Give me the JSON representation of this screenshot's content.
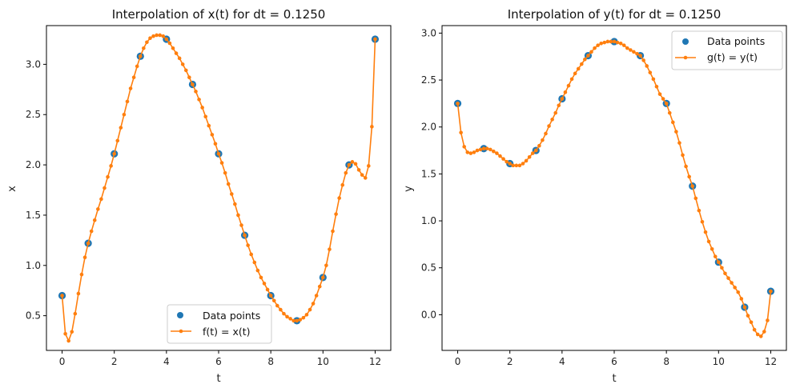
{
  "chart_data": [
    {
      "type": "line",
      "title": "Interpolation of x(t) for dt = 0.1250",
      "xlabel": "t",
      "ylabel": "x",
      "xlim": [
        -0.6,
        12.6
      ],
      "ylim": [
        0.155,
        3.385
      ],
      "xticks": [
        0,
        2,
        4,
        6,
        8,
        10,
        12
      ],
      "xtick_labels": [
        "0",
        "2",
        "4",
        "6",
        "8",
        "10",
        "12"
      ],
      "yticks": [
        0.5,
        1.0,
        1.5,
        2.0,
        2.5,
        3.0
      ],
      "ytick_labels": [
        "0.5",
        "1.0",
        "1.5",
        "2.0",
        "2.5",
        "3.0"
      ],
      "legend_position": "lower-center",
      "series": [
        {
          "name": "Data points",
          "kind": "scatter",
          "color": "#1f77b4",
          "x": [
            0,
            1,
            2,
            3,
            4,
            5,
            6,
            7,
            8,
            9,
            10,
            11,
            12
          ],
          "y": [
            0.7,
            1.22,
            2.11,
            3.08,
            3.25,
            2.8,
            2.11,
            1.3,
            0.7,
            0.45,
            0.88,
            2.0,
            3.25
          ]
        },
        {
          "name": "f(t) = x(t)",
          "kind": "line-marker",
          "color": "#ff7f0e",
          "x": [
            0,
            0.125,
            0.25,
            0.375,
            0.5,
            0.625,
            0.75,
            0.875,
            1,
            1.125,
            1.25,
            1.375,
            1.5,
            1.625,
            1.75,
            1.875,
            2,
            2.125,
            2.25,
            2.375,
            2.5,
            2.625,
            2.75,
            2.875,
            3,
            3.125,
            3.25,
            3.375,
            3.5,
            3.625,
            3.75,
            3.875,
            4,
            4.125,
            4.25,
            4.375,
            4.5,
            4.625,
            4.75,
            4.875,
            5,
            5.125,
            5.25,
            5.375,
            5.5,
            5.625,
            5.75,
            5.875,
            6,
            6.125,
            6.25,
            6.375,
            6.5,
            6.625,
            6.75,
            6.875,
            7,
            7.125,
            7.25,
            7.375,
            7.5,
            7.625,
            7.75,
            7.875,
            8,
            8.125,
            8.25,
            8.375,
            8.5,
            8.625,
            8.75,
            8.875,
            9,
            9.125,
            9.25,
            9.375,
            9.5,
            9.625,
            9.75,
            9.875,
            10,
            10.125,
            10.25,
            10.375,
            10.5,
            10.625,
            10.75,
            10.875,
            11,
            11.125,
            11.25,
            11.375,
            11.5,
            11.625,
            11.75,
            11.875,
            12
          ],
          "y": [
            0.7,
            0.32,
            0.25,
            0.34,
            0.52,
            0.72,
            0.91,
            1.08,
            1.22,
            1.34,
            1.45,
            1.56,
            1.66,
            1.77,
            1.88,
            1.99,
            2.11,
            2.24,
            2.37,
            2.5,
            2.63,
            2.76,
            2.87,
            2.98,
            3.08,
            3.16,
            3.22,
            3.26,
            3.28,
            3.29,
            3.29,
            3.28,
            3.25,
            3.21,
            3.16,
            3.11,
            3.06,
            3.0,
            2.94,
            2.87,
            2.8,
            2.73,
            2.65,
            2.57,
            2.48,
            2.39,
            2.3,
            2.21,
            2.11,
            2.02,
            1.92,
            1.81,
            1.71,
            1.61,
            1.5,
            1.4,
            1.3,
            1.2,
            1.11,
            1.03,
            0.95,
            0.88,
            0.82,
            0.76,
            0.7,
            0.65,
            0.6,
            0.56,
            0.52,
            0.49,
            0.47,
            0.45,
            0.45,
            0.46,
            0.48,
            0.51,
            0.56,
            0.62,
            0.7,
            0.79,
            0.88,
            1.0,
            1.16,
            1.34,
            1.51,
            1.67,
            1.8,
            1.92,
            2.0,
            2.03,
            2.01,
            1.95,
            1.9,
            1.87,
            1.99,
            2.38,
            3.25
          ]
        }
      ]
    },
    {
      "type": "line",
      "title": "Interpolation of y(t) for dt = 0.1250",
      "xlabel": "t",
      "ylabel": "y",
      "xlim": [
        -0.6,
        12.6
      ],
      "ylim": [
        -0.38,
        3.08
      ],
      "xticks": [
        0,
        2,
        4,
        6,
        8,
        10,
        12
      ],
      "xtick_labels": [
        "0",
        "2",
        "4",
        "6",
        "8",
        "10",
        "12"
      ],
      "yticks": [
        0.0,
        0.5,
        1.0,
        1.5,
        2.0,
        2.5,
        3.0
      ],
      "ytick_labels": [
        "0.0",
        "0.5",
        "1.0",
        "1.5",
        "2.0",
        "2.5",
        "3.0"
      ],
      "legend_position": "upper-right",
      "series": [
        {
          "name": "Data points",
          "kind": "scatter",
          "color": "#1f77b4",
          "x": [
            0,
            1,
            2,
            3,
            4,
            5,
            6,
            7,
            8,
            9,
            10,
            11,
            12
          ],
          "y": [
            2.25,
            1.77,
            1.61,
            1.75,
            2.3,
            2.76,
            2.91,
            2.76,
            2.25,
            1.37,
            0.56,
            0.08,
            0.25
          ]
        },
        {
          "name": "g(t) = y(t)",
          "kind": "line-marker",
          "color": "#ff7f0e",
          "x": [
            0,
            0.125,
            0.25,
            0.375,
            0.5,
            0.625,
            0.75,
            0.875,
            1,
            1.125,
            1.25,
            1.375,
            1.5,
            1.625,
            1.75,
            1.875,
            2,
            2.125,
            2.25,
            2.375,
            2.5,
            2.625,
            2.75,
            2.875,
            3,
            3.125,
            3.25,
            3.375,
            3.5,
            3.625,
            3.75,
            3.875,
            4,
            4.125,
            4.25,
            4.375,
            4.5,
            4.625,
            4.75,
            4.875,
            5,
            5.125,
            5.25,
            5.375,
            5.5,
            5.625,
            5.75,
            5.875,
            6,
            6.125,
            6.25,
            6.375,
            6.5,
            6.625,
            6.75,
            6.875,
            7,
            7.125,
            7.25,
            7.375,
            7.5,
            7.625,
            7.75,
            7.875,
            8,
            8.125,
            8.25,
            8.375,
            8.5,
            8.625,
            8.75,
            8.875,
            9,
            9.125,
            9.25,
            9.375,
            9.5,
            9.625,
            9.75,
            9.875,
            10,
            10.125,
            10.25,
            10.375,
            10.5,
            10.625,
            10.75,
            10.875,
            11,
            11.125,
            11.25,
            11.375,
            11.5,
            11.625,
            11.75,
            11.875,
            12
          ],
          "y": [
            2.25,
            1.94,
            1.79,
            1.73,
            1.72,
            1.73,
            1.75,
            1.76,
            1.77,
            1.77,
            1.76,
            1.74,
            1.72,
            1.69,
            1.66,
            1.63,
            1.61,
            1.59,
            1.59,
            1.59,
            1.61,
            1.64,
            1.68,
            1.72,
            1.75,
            1.8,
            1.86,
            1.93,
            2.01,
            2.08,
            2.15,
            2.23,
            2.3,
            2.37,
            2.44,
            2.51,
            2.57,
            2.62,
            2.67,
            2.72,
            2.76,
            2.8,
            2.84,
            2.87,
            2.89,
            2.9,
            2.91,
            2.91,
            2.91,
            2.9,
            2.89,
            2.87,
            2.84,
            2.82,
            2.8,
            2.78,
            2.76,
            2.71,
            2.65,
            2.58,
            2.51,
            2.43,
            2.35,
            2.3,
            2.25,
            2.15,
            2.05,
            1.95,
            1.83,
            1.7,
            1.58,
            1.47,
            1.37,
            1.24,
            1.11,
            0.99,
            0.88,
            0.78,
            0.7,
            0.62,
            0.56,
            0.5,
            0.44,
            0.39,
            0.34,
            0.29,
            0.24,
            0.17,
            0.08,
            -0.01,
            -0.08,
            -0.16,
            -0.21,
            -0.23,
            -0.18,
            -0.06,
            0.25
          ]
        }
      ]
    }
  ]
}
